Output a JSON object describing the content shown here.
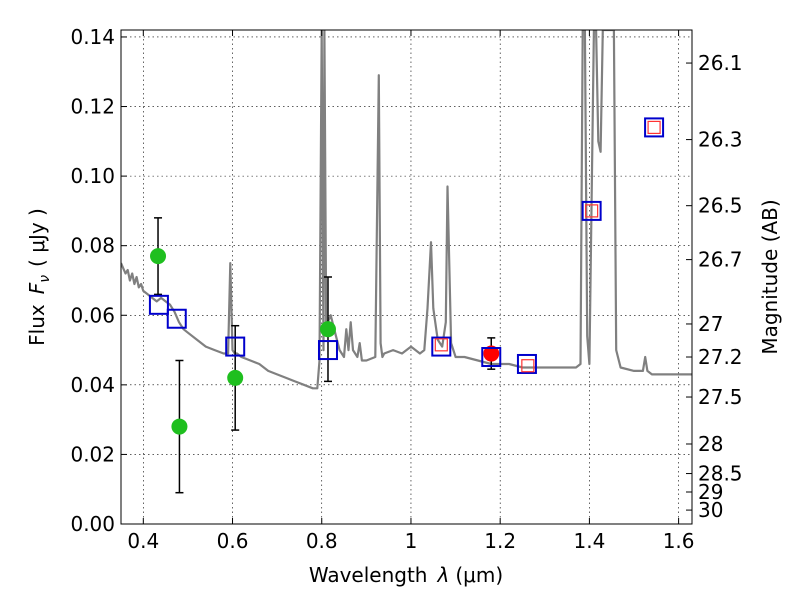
{
  "chart_data": {
    "type": "scatter",
    "title": "",
    "xlabel_prefix": "Wavelength",
    "xlabel_sym": "λ",
    "xlabel_unit": "(μm)",
    "ylabel_prefix": "Flux",
    "ylabel_sym": "F",
    "ylabel_sub": "ν",
    "ylabel_unit": "( μJy )",
    "y2label": "Magnitude (AB)",
    "xlim": [
      0.35,
      1.63
    ],
    "ylim": [
      0.0,
      0.142
    ],
    "grid": true,
    "x_ticks": [
      0.4,
      0.6,
      0.8,
      1.0,
      1.2,
      1.4,
      1.6
    ],
    "x_tick_labels": [
      "0.4",
      "0.6",
      "0.8",
      "1",
      "1.2",
      "1.4",
      "1.6"
    ],
    "y_ticks": [
      0.0,
      0.02,
      0.04,
      0.06,
      0.08,
      0.1,
      0.12,
      0.14
    ],
    "y_tick_labels": [
      "0.00",
      "0.02",
      "0.04",
      "0.06",
      "0.08",
      "0.10",
      "0.12",
      "0.14"
    ],
    "y2_ticks": [
      {
        "flux": 0.1325,
        "label": "26.1"
      },
      {
        "flux": 0.1105,
        "label": "26.3"
      },
      {
        "flux": 0.0915,
        "label": "26.5"
      },
      {
        "flux": 0.076,
        "label": "26.7"
      },
      {
        "flux": 0.0575,
        "label": "27"
      },
      {
        "flux": 0.048,
        "label": "27.2"
      },
      {
        "flux": 0.0365,
        "label": "27.5"
      },
      {
        "flux": 0.023,
        "label": "28"
      },
      {
        "flux": 0.0145,
        "label": "28.5"
      },
      {
        "flux": 0.0092,
        "label": "29"
      },
      {
        "flux": 0.004,
        "label": "30"
      }
    ],
    "series": [
      {
        "name": "model-spectrum",
        "kind": "line",
        "color": "#808080",
        "x": [
          0.35,
          0.36,
          0.365,
          0.37,
          0.375,
          0.38,
          0.385,
          0.39,
          0.395,
          0.4,
          0.41,
          0.42,
          0.43,
          0.44,
          0.45,
          0.46,
          0.47,
          0.48,
          0.49,
          0.5,
          0.52,
          0.54,
          0.56,
          0.58,
          0.59,
          0.595,
          0.6,
          0.605,
          0.61,
          0.62,
          0.64,
          0.66,
          0.68,
          0.7,
          0.72,
          0.74,
          0.76,
          0.78,
          0.79,
          0.795,
          0.8,
          0.802,
          0.804,
          0.806,
          0.81,
          0.82,
          0.83,
          0.84,
          0.85,
          0.855,
          0.86,
          0.865,
          0.87,
          0.88,
          0.885,
          0.89,
          0.9,
          0.92,
          0.928,
          0.932,
          0.936,
          0.94,
          0.96,
          0.98,
          1.0,
          1.02,
          1.03,
          1.037,
          1.045,
          1.05,
          1.06,
          1.07,
          1.078,
          1.082,
          1.09,
          1.1,
          1.12,
          1.15,
          1.18,
          1.2,
          1.22,
          1.25,
          1.28,
          1.3,
          1.33,
          1.35,
          1.36,
          1.37,
          1.38,
          1.385,
          1.39,
          1.395,
          1.4,
          1.41,
          1.415,
          1.42,
          1.425,
          1.43,
          1.435,
          1.44,
          1.45,
          1.455,
          1.46,
          1.47,
          1.5,
          1.52,
          1.525,
          1.53,
          1.54,
          1.56,
          1.58,
          1.6,
          1.63
        ],
        "y": [
          0.075,
          0.072,
          0.073,
          0.07,
          0.072,
          0.069,
          0.071,
          0.068,
          0.069,
          0.067,
          0.066,
          0.065,
          0.064,
          0.065,
          0.064,
          0.063,
          0.061,
          0.058,
          0.056,
          0.055,
          0.053,
          0.051,
          0.05,
          0.049,
          0.049,
          0.075,
          0.05,
          0.049,
          0.049,
          0.048,
          0.047,
          0.046,
          0.044,
          0.043,
          0.042,
          0.041,
          0.04,
          0.039,
          0.039,
          0.047,
          0.142,
          0.09,
          0.05,
          0.142,
          0.057,
          0.06,
          0.055,
          0.05,
          0.048,
          0.056,
          0.05,
          0.058,
          0.05,
          0.048,
          0.052,
          0.047,
          0.047,
          0.048,
          0.129,
          0.052,
          0.048,
          0.049,
          0.05,
          0.049,
          0.051,
          0.049,
          0.05,
          0.062,
          0.081,
          0.062,
          0.053,
          0.051,
          0.058,
          0.097,
          0.052,
          0.048,
          0.048,
          0.047,
          0.046,
          0.046,
          0.046,
          0.045,
          0.045,
          0.045,
          0.045,
          0.045,
          0.045,
          0.045,
          0.046,
          0.142,
          0.142,
          0.054,
          0.046,
          0.142,
          0.142,
          0.11,
          0.107,
          0.142,
          0.142,
          0.142,
          0.142,
          0.142,
          0.05,
          0.045,
          0.044,
          0.044,
          0.048,
          0.044,
          0.043,
          0.043,
          0.043,
          0.043,
          0.043
        ]
      },
      {
        "name": "observed-green",
        "kind": "points",
        "marker": "circle",
        "color": "#1fbf1f",
        "points": [
          {
            "x": 0.433,
            "y": 0.077,
            "err": 0.011
          },
          {
            "x": 0.481,
            "y": 0.028,
            "err": 0.019
          },
          {
            "x": 0.606,
            "y": 0.042,
            "err": 0.015
          },
          {
            "x": 0.814,
            "y": 0.056,
            "err": 0.015
          }
        ]
      },
      {
        "name": "observed-red",
        "kind": "points",
        "marker": "circle",
        "color": "#ff0000",
        "points": [
          {
            "x": 1.18,
            "y": 0.049,
            "err": 0.0045
          }
        ]
      },
      {
        "name": "model-blue",
        "kind": "points",
        "marker": "square",
        "color": "#0000cc",
        "points": [
          {
            "x": 0.435,
            "y": 0.063
          },
          {
            "x": 0.475,
            "y": 0.059
          },
          {
            "x": 0.606,
            "y": 0.051
          },
          {
            "x": 0.814,
            "y": 0.05
          },
          {
            "x": 1.068,
            "y": 0.051
          },
          {
            "x": 1.18,
            "y": 0.048
          },
          {
            "x": 1.26,
            "y": 0.046
          },
          {
            "x": 1.405,
            "y": 0.09
          },
          {
            "x": 1.545,
            "y": 0.114
          }
        ]
      },
      {
        "name": "model-red",
        "kind": "points",
        "marker": "square-small",
        "color": "#ff3333",
        "points": [
          {
            "x": 1.068,
            "y": 0.0515
          },
          {
            "x": 1.262,
            "y": 0.0455
          },
          {
            "x": 1.405,
            "y": 0.09
          },
          {
            "x": 1.545,
            "y": 0.114
          }
        ]
      }
    ]
  }
}
